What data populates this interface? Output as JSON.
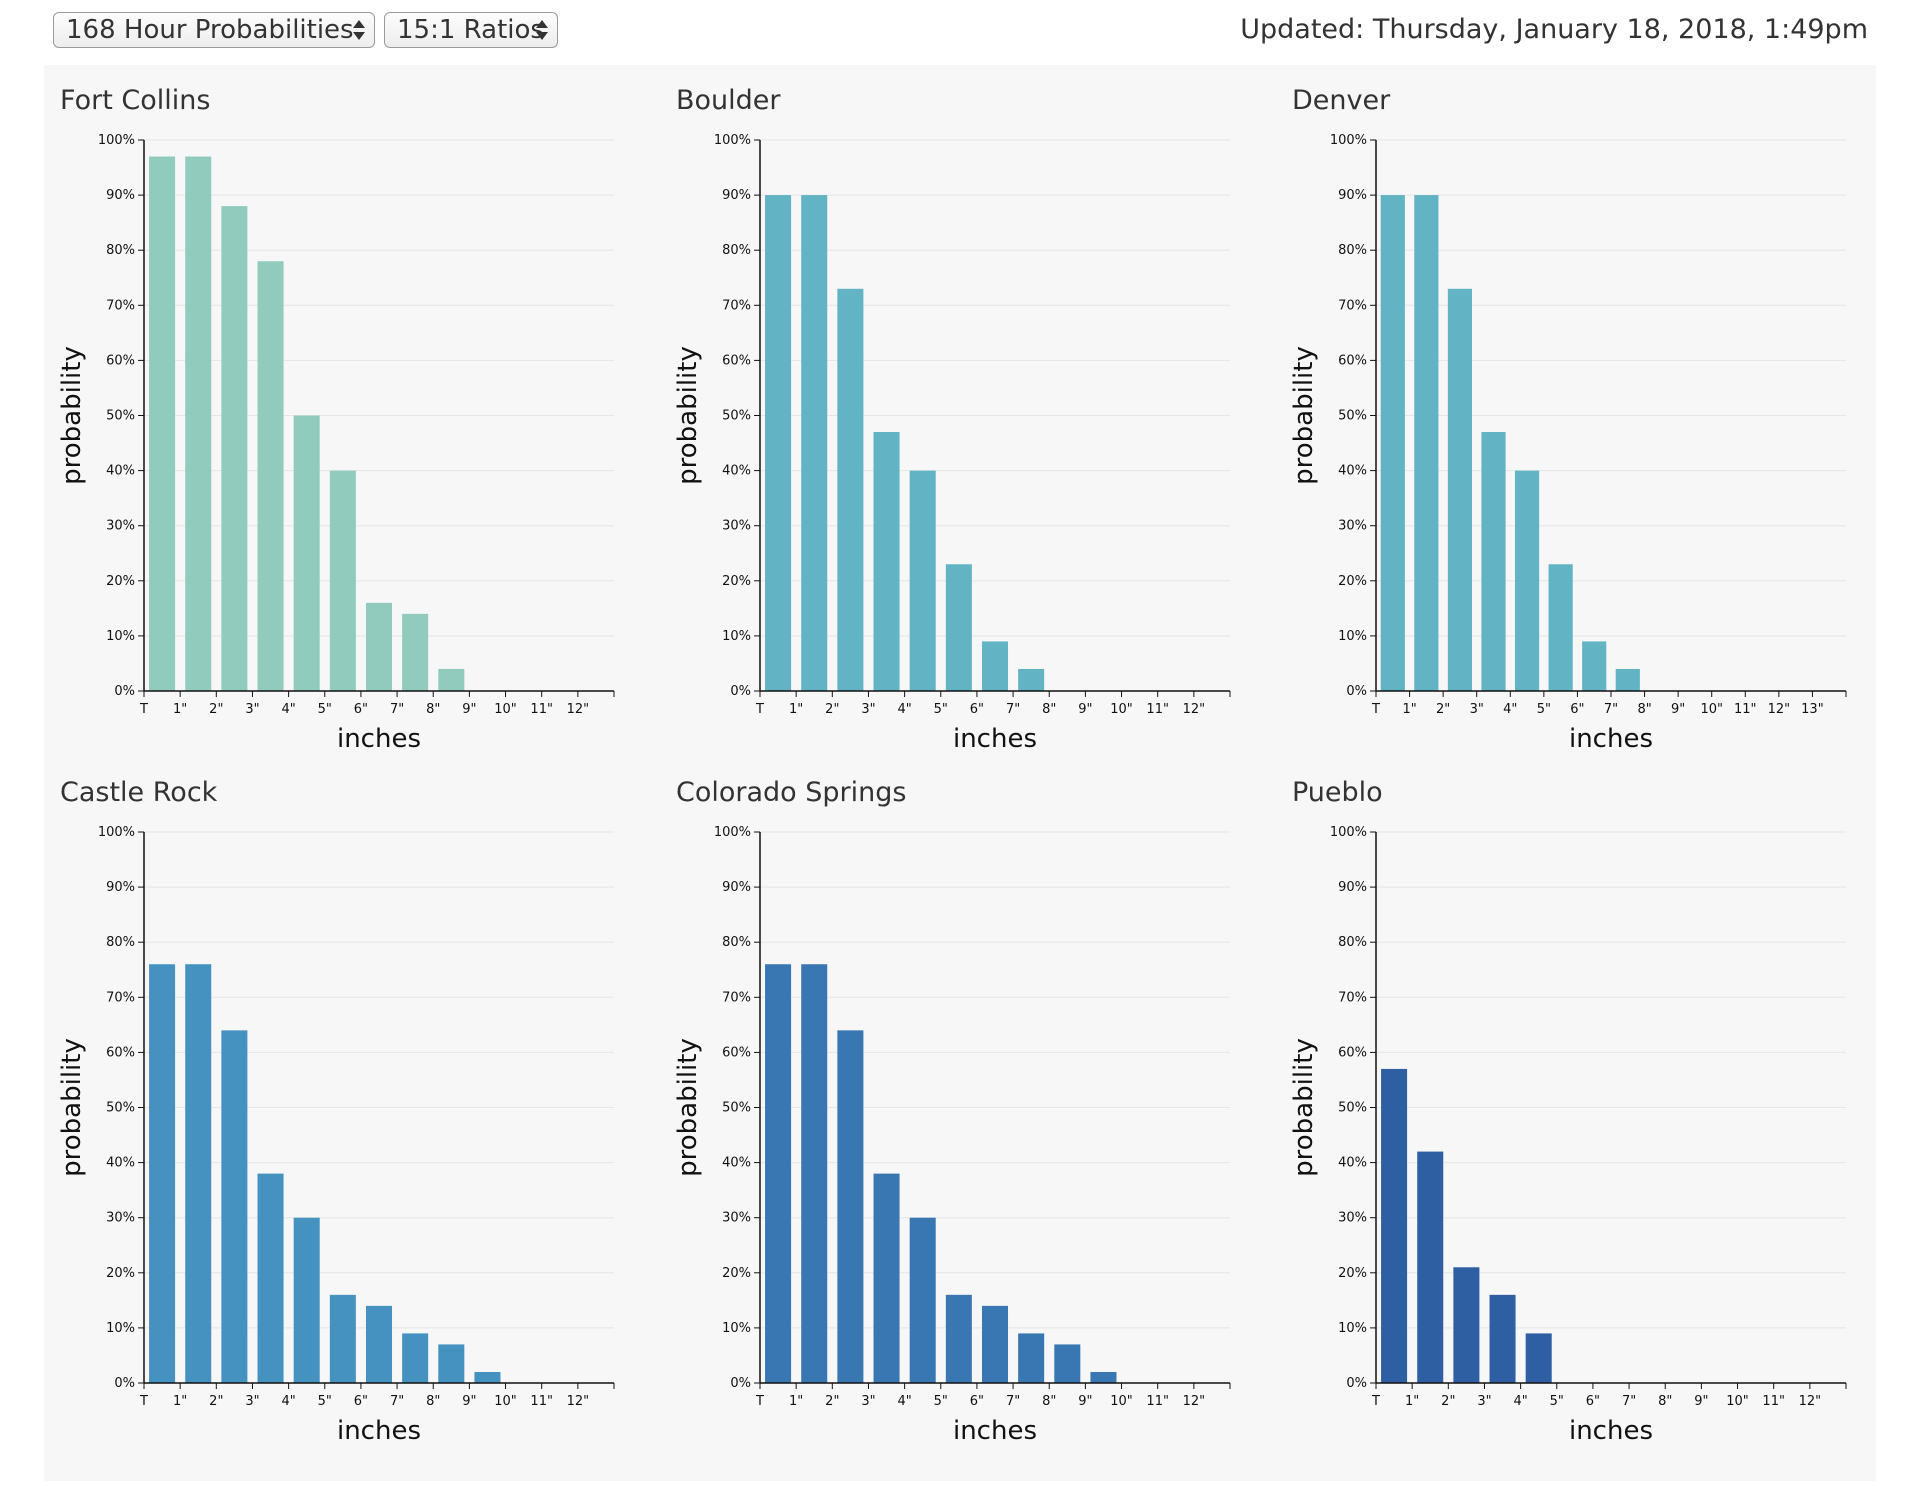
{
  "controls": {
    "period_select": "168 Hour Probabilities",
    "ratio_select": "15:1 Ratios"
  },
  "updated_text": "Updated: Thursday, January 18, 2018, 1:49pm",
  "chart_data": [
    {
      "type": "bar",
      "title": "Fort Collins",
      "xlabel": "inches",
      "ylabel": "probability",
      "ylim": [
        0,
        100
      ],
      "yticks": [
        "0%",
        "10%",
        "20%",
        "30%",
        "40%",
        "50%",
        "60%",
        "70%",
        "80%",
        "90%",
        "100%"
      ],
      "categories": [
        "T",
        "1\"",
        "2\"",
        "3\"",
        "4\"",
        "5\"",
        "6\"",
        "7\"",
        "8\"",
        "9\"",
        "10\"",
        "11\"",
        "12\""
      ],
      "values": [
        97,
        97,
        88,
        78,
        50,
        40,
        16,
        14,
        4,
        0,
        0,
        0,
        0
      ],
      "color": "#91cbbd"
    },
    {
      "type": "bar",
      "title": "Boulder",
      "xlabel": "inches",
      "ylabel": "probability",
      "ylim": [
        0,
        100
      ],
      "yticks": [
        "0%",
        "10%",
        "20%",
        "30%",
        "40%",
        "50%",
        "60%",
        "70%",
        "80%",
        "90%",
        "100%"
      ],
      "categories": [
        "T",
        "1\"",
        "2\"",
        "3\"",
        "4\"",
        "5\"",
        "6\"",
        "7\"",
        "8\"",
        "9\"",
        "10\"",
        "11\"",
        "12\""
      ],
      "values": [
        90,
        90,
        73,
        47,
        40,
        23,
        9,
        4,
        0,
        0,
        0,
        0,
        0
      ],
      "color": "#62b3c3"
    },
    {
      "type": "bar",
      "title": "Denver",
      "xlabel": "inches",
      "ylabel": "probability",
      "ylim": [
        0,
        100
      ],
      "yticks": [
        "0%",
        "10%",
        "20%",
        "30%",
        "40%",
        "50%",
        "60%",
        "70%",
        "80%",
        "90%",
        "100%"
      ],
      "categories": [
        "T",
        "1\"",
        "2\"",
        "3\"",
        "4\"",
        "5\"",
        "6\"",
        "7\"",
        "8\"",
        "9\"",
        "10\"",
        "11\"",
        "12\"",
        "13\""
      ],
      "values": [
        90,
        90,
        73,
        47,
        40,
        23,
        9,
        4,
        0,
        0,
        0,
        0,
        0,
        0
      ],
      "color": "#62b3c3"
    },
    {
      "type": "bar",
      "title": "Castle Rock",
      "xlabel": "inches",
      "ylabel": "probability",
      "ylim": [
        0,
        100
      ],
      "yticks": [
        "0%",
        "10%",
        "20%",
        "30%",
        "40%",
        "50%",
        "60%",
        "70%",
        "80%",
        "90%",
        "100%"
      ],
      "categories": [
        "T",
        "1\"",
        "2\"",
        "3\"",
        "4\"",
        "5\"",
        "6\"",
        "7\"",
        "8\"",
        "9\"",
        "10\"",
        "11\"",
        "12\""
      ],
      "values": [
        76,
        76,
        64,
        38,
        30,
        16,
        14,
        9,
        7,
        2,
        0,
        0,
        0
      ],
      "color": "#4591c0"
    },
    {
      "type": "bar",
      "title": "Colorado Springs",
      "xlabel": "inches",
      "ylabel": "probability",
      "ylim": [
        0,
        100
      ],
      "yticks": [
        "0%",
        "10%",
        "20%",
        "30%",
        "40%",
        "50%",
        "60%",
        "70%",
        "80%",
        "90%",
        "100%"
      ],
      "categories": [
        "T",
        "1\"",
        "2\"",
        "3\"",
        "4\"",
        "5\"",
        "6\"",
        "7\"",
        "8\"",
        "9\"",
        "10\"",
        "11\"",
        "12\""
      ],
      "values": [
        76,
        76,
        64,
        38,
        30,
        16,
        14,
        9,
        7,
        2,
        0,
        0,
        0
      ],
      "color": "#3877b1"
    },
    {
      "type": "bar",
      "title": "Pueblo",
      "xlabel": "inches",
      "ylabel": "probability",
      "ylim": [
        0,
        100
      ],
      "yticks": [
        "0%",
        "10%",
        "20%",
        "30%",
        "40%",
        "50%",
        "60%",
        "70%",
        "80%",
        "90%",
        "100%"
      ],
      "categories": [
        "T",
        "1\"",
        "2\"",
        "3\"",
        "4\"",
        "5\"",
        "6\"",
        "7\"",
        "8\"",
        "9\"",
        "10\"",
        "11\"",
        "12\""
      ],
      "values": [
        57,
        42,
        21,
        16,
        9,
        0,
        0,
        0,
        0,
        0,
        0,
        0,
        0
      ],
      "color": "#2f5fa3"
    }
  ]
}
